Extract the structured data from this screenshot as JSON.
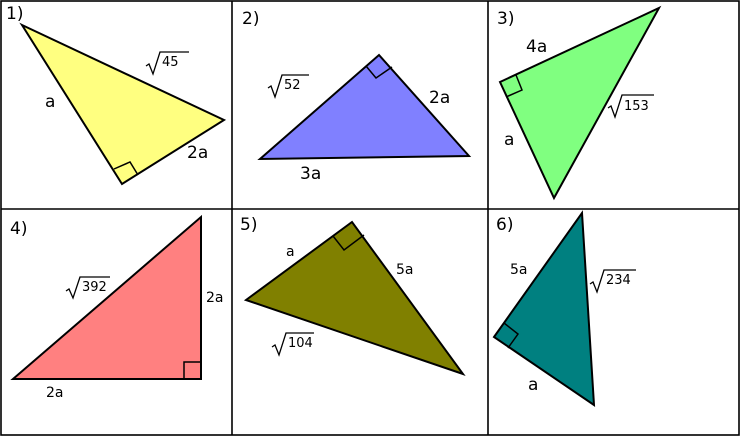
{
  "colors": {
    "p1": "#ffff80",
    "p2": "#8080ff",
    "p3": "#80ff80",
    "p4": "#ff8080",
    "p5": "#808000",
    "p6": "#008080"
  },
  "problems": [
    {
      "number": "1)",
      "leg_a": "a",
      "leg_b": "2a",
      "radicand": "45"
    },
    {
      "number": "2)",
      "radicand": "52",
      "leg_a": "2a",
      "base": "3a"
    },
    {
      "number": "3)",
      "leg_top": "4a",
      "leg_a": "a",
      "radicand": "153"
    },
    {
      "number": "4)",
      "radicand": "392",
      "leg_right": "2a",
      "base": "2a"
    },
    {
      "number": "5)",
      "leg_a": "a",
      "leg_b": "5a",
      "radicand": "104"
    },
    {
      "number": "6)",
      "leg_top": "5a",
      "leg_a": "a",
      "radicand": "234"
    }
  ]
}
